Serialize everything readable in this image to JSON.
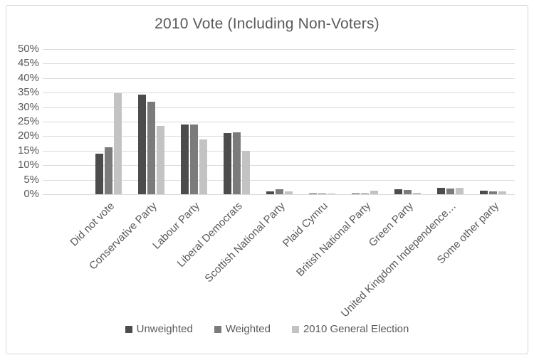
{
  "window": {
    "background_color": "#ffffff",
    "border_color": "#d6d6d6"
  },
  "chart_data": {
    "type": "bar",
    "title": "2010 Vote (Including Non-Voters)",
    "categories": [
      "Did not vote",
      "Conservative Party",
      "Labour Party",
      "Liberal Democrats",
      "Scottish National Party",
      "Plaid Cymru",
      "British National Party",
      "Green Party",
      "United Kingdom Independence…",
      "Some other party"
    ],
    "series": [
      {
        "name": "Unweighted",
        "color": "#4c4c4c",
        "values": [
          13.9,
          34.2,
          24.0,
          21.2,
          0.9,
          0.2,
          0.1,
          1.6,
          2.2,
          1.2
        ]
      },
      {
        "name": "Weighted",
        "color": "#7b7b7b",
        "values": [
          16.1,
          31.8,
          24.0,
          21.3,
          1.8,
          0.3,
          0.1,
          1.5,
          1.9,
          0.9
        ]
      },
      {
        "name": "2010 General Election",
        "color": "#c3c3c3",
        "values": [
          34.9,
          23.5,
          18.9,
          15.0,
          1.1,
          0.3,
          1.2,
          0.6,
          2.3,
          1.1
        ]
      }
    ],
    "ylim": [
      0,
      50
    ],
    "ytick_step": 5,
    "ytick_suffix": "%",
    "grid": true,
    "gridline_color": "#dadada",
    "text_color": "#595959",
    "legend_position": "bottom",
    "xlabel": "",
    "ylabel": ""
  }
}
